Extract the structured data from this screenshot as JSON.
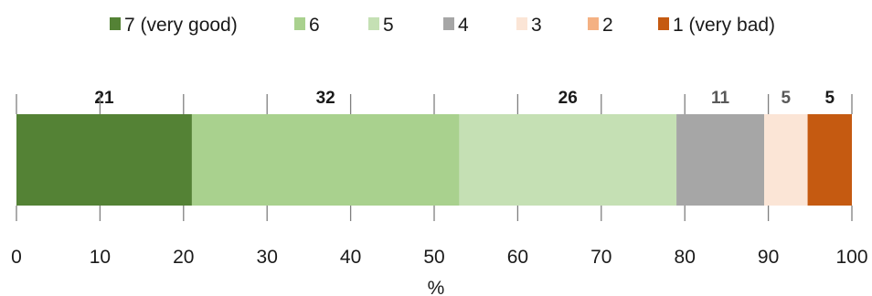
{
  "chart_data": {
    "type": "bar",
    "orientation": "horizontal",
    "stacked": true,
    "title": "",
    "xlabel": "%",
    "ylabel": "",
    "xlim": [
      0,
      100
    ],
    "xticks": [
      "0",
      "10",
      "20",
      "30",
      "40",
      "50",
      "60",
      "70",
      "80",
      "90",
      "100"
    ],
    "legend_position": "top",
    "series": [
      {
        "name": "7 (very good)",
        "value": 21,
        "label": "21",
        "color": "#548235",
        "label_color": "#1a1a1a"
      },
      {
        "name": "6",
        "value": 32,
        "label": "32",
        "color": "#a9d18e",
        "label_color": "#1a1a1a"
      },
      {
        "name": "5",
        "value": 26,
        "label": "26",
        "color": "#c5e0b4",
        "label_color": "#1a1a1a"
      },
      {
        "name": "4",
        "value": 10.5,
        "label": "11",
        "color": "#a6a6a6",
        "label_color": "#595959"
      },
      {
        "name": "3",
        "value": 5.2,
        "label": "5",
        "color": "#fbe5d6",
        "label_color": "#595959"
      },
      {
        "name": "2",
        "value": 0,
        "label": "",
        "color": "#f4b183",
        "label_color": "#595959"
      },
      {
        "name": "1 (very bad)",
        "value": 5.3,
        "label": "5",
        "color": "#c55a11",
        "label_color": "#1a1a1a"
      }
    ]
  }
}
